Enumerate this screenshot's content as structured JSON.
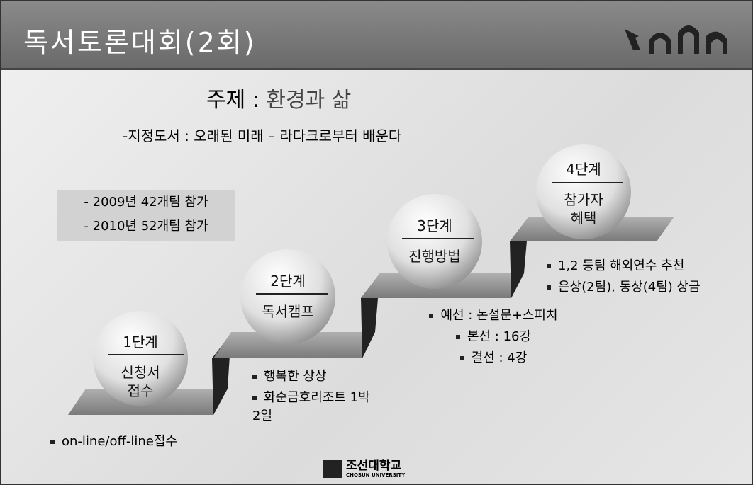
{
  "header": {
    "title": "독서토론대회(2회)"
  },
  "topic": {
    "label": "주제 :",
    "text": "환경과 삶"
  },
  "book": "-지정도서 : 오래된 미래 – 라다크로부터 배운다",
  "stats": [
    "- 2009년 42개팀 참가",
    "- 2010년 52개팀 참가"
  ],
  "steps": [
    {
      "step": "1단계",
      "title": [
        "신청서",
        "접수"
      ],
      "bullets": [
        "on-line/off-line접수"
      ]
    },
    {
      "step": "2단계",
      "title": [
        "독서캠프"
      ],
      "bullets": [
        "행복한 상상",
        "화순금호리조트 1박2일"
      ]
    },
    {
      "step": "3단계",
      "title": [
        "진행방법"
      ],
      "bullets": [
        "예선 : 논설문+스피치",
        "본선 : 16강",
        "결선 : 4강"
      ]
    },
    {
      "step": "4단계",
      "title": [
        "참가자",
        "혜택"
      ],
      "bullets": [
        "1,2 등팀 해외연수 추천",
        "은상(2팀), 동상(4팀) 상금"
      ]
    }
  ],
  "footer": {
    "name": "조선대학교",
    "name_en": "CHOSUN UNIVERSITY"
  }
}
